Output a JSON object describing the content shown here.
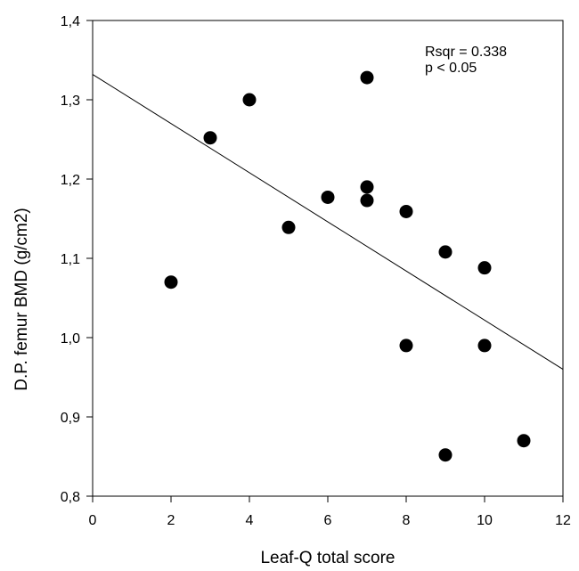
{
  "chart_data": {
    "type": "scatter",
    "title": "",
    "xlabel": "Leaf-Q total score",
    "ylabel": "D.P. femur BMD (g/cm2)",
    "xlim": [
      0,
      12
    ],
    "ylim": [
      0.8,
      1.4
    ],
    "xticks": [
      {
        "value": 0,
        "label": "0"
      },
      {
        "value": 2,
        "label": "2"
      },
      {
        "value": 4,
        "label": "4"
      },
      {
        "value": 6,
        "label": "6"
      },
      {
        "value": 8,
        "label": "8"
      },
      {
        "value": 10,
        "label": "10"
      },
      {
        "value": 12,
        "label": "12"
      }
    ],
    "yticks": [
      {
        "value": 0.8,
        "label": "0,8"
      },
      {
        "value": 0.9,
        "label": "0,9"
      },
      {
        "value": 1.0,
        "label": "1,0"
      },
      {
        "value": 1.1,
        "label": "1,1"
      },
      {
        "value": 1.2,
        "label": "1,2"
      },
      {
        "value": 1.3,
        "label": "1,3"
      },
      {
        "value": 1.4,
        "label": "1,4"
      }
    ],
    "grid": false,
    "points": [
      {
        "x": 2,
        "y": 1.07
      },
      {
        "x": 3,
        "y": 1.252
      },
      {
        "x": 4,
        "y": 1.3
      },
      {
        "x": 5,
        "y": 1.139
      },
      {
        "x": 6,
        "y": 1.177
      },
      {
        "x": 7,
        "y": 1.328
      },
      {
        "x": 7,
        "y": 1.19
      },
      {
        "x": 7,
        "y": 1.173
      },
      {
        "x": 8,
        "y": 1.159
      },
      {
        "x": 8,
        "y": 0.99
      },
      {
        "x": 9,
        "y": 1.108
      },
      {
        "x": 9,
        "y": 0.852
      },
      {
        "x": 10,
        "y": 1.088
      },
      {
        "x": 10,
        "y": 0.99
      },
      {
        "x": 11,
        "y": 0.87
      }
    ],
    "regression_line": {
      "x": [
        0,
        12
      ],
      "y": [
        1.332,
        0.96
      ]
    },
    "annotations": [
      "Rsqr = 0.338",
      "p < 0.05"
    ],
    "colors": {
      "marker": "#000000",
      "line": "#000000"
    }
  }
}
